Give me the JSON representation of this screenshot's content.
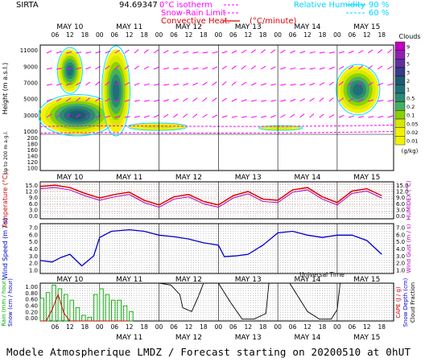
{
  "header": {
    "station": "SIRTA",
    "coords": "94.69347",
    "legend_isotherm": "0°C isotherm",
    "legend_snow": "Snow-Rain Limit",
    "legend_convective": "Convective Heat.",
    "legend_convective_unit": "(°C/minute)",
    "legend_rh": "Relative Humidity",
    "rh_90": "90 %",
    "rh_60": "60 %"
  },
  "footer": {
    "text": "Modele Atmospherique LMDZ / Forecast starting on 20200510 at 0hUT"
  },
  "colors": {
    "cloud_scale": [
      "#f2f200",
      "#d6e800",
      "#8ad000",
      "#44b060",
      "#2a8a70",
      "#1f6f78",
      "#1d5a70",
      "#3a3a8a",
      "#6030a0",
      "#9020b0",
      "#c000c0"
    ],
    "temperature": "#e00000",
    "humidex": "#b000b0",
    "wind_speed": "#0000cc",
    "rain": "#00aa00",
    "cape": "#cc0000",
    "snow_depth": "#0000cc",
    "cloud_fraction": "#000000",
    "wind_barb": "#ff00ff",
    "rh": "#00e0ff"
  },
  "chart_data": [
    {
      "type": "heatmap",
      "title": "",
      "ylabel": "Height (m a.s.l.)",
      "ylabel2": "Up to 200 m a.g.l.",
      "colorbar_title": "Clouds",
      "colorbar_unit": "(g/kg)",
      "colorbar_ticks": [
        "9",
        "7",
        "5",
        "3",
        "2",
        "1",
        "0.5",
        "0.2",
        "0.1",
        "0.05",
        "0.02",
        "0.01"
      ],
      "y_ticks": [
        "11000",
        "9000",
        "7000",
        "5000",
        "3000",
        "1000"
      ],
      "y_ticks_low": [
        "200",
        "180",
        "160",
        "140",
        "120",
        "100"
      ],
      "ylim": [
        1000,
        11500
      ],
      "x_days": [
        "MAY 10",
        "MAY 11",
        "MAY 12",
        "MAY 13",
        "MAY 14",
        "MAY 15"
      ],
      "x_hours": [
        "06",
        "12",
        "18",
        "00",
        "06",
        "12",
        "18",
        "00",
        "06",
        "12",
        "18",
        "00",
        "06",
        "12",
        "18",
        "00",
        "06",
        "12",
        "18",
        "00",
        "06",
        "12",
        "18"
      ],
      "cloud_blobs": [
        {
          "t0": 0.0,
          "t1": 1.25,
          "z0": 1000,
          "z1": 5500,
          "max_g_kg": 3
        },
        {
          "t0": 0.3,
          "t1": 0.7,
          "z0": 6000,
          "z1": 11000,
          "max_g_kg": 2
        },
        {
          "t0": 1.05,
          "t1": 1.5,
          "z0": 1200,
          "z1": 11000,
          "max_g_kg": 1
        },
        {
          "t0": 1.5,
          "t1": 2.45,
          "z0": 1500,
          "z1": 2300,
          "max_g_kg": 0.05
        },
        {
          "t0": 3.7,
          "t1": 4.4,
          "z0": 1500,
          "z1": 2000,
          "max_g_kg": 0.05
        },
        {
          "t0": 5.0,
          "t1": 5.7,
          "z0": 3500,
          "z1": 9000,
          "max_g_kg": 1
        }
      ]
    },
    {
      "type": "line",
      "ylabel": "Temperature (°C)",
      "ylabel2": "HUMIDEX (°C)",
      "y_ticks": [
        "15.0",
        "12.0",
        "9.0",
        "6.0",
        "3.0",
        "0.0"
      ],
      "ylim": [
        0,
        16
      ],
      "x": [
        0,
        0.25,
        0.5,
        0.75,
        1.0,
        1.25,
        1.5,
        1.75,
        2.0,
        2.25,
        2.5,
        2.75,
        3.0,
        3.25,
        3.5,
        3.75,
        4.0,
        4.25,
        4.5,
        4.75,
        5.0,
        5.25,
        5.5,
        5.75
      ],
      "series": [
        {
          "name": "Temperature",
          "values": [
            14.0,
            14.5,
            13.5,
            11.0,
            9.0,
            10.5,
            11.5,
            8.0,
            6.0,
            9.5,
            10.5,
            7.5,
            6.0,
            10.0,
            11.8,
            8.5,
            8.0,
            12.5,
            13.5,
            9.5,
            7.0,
            12.0,
            13.0,
            10.0
          ]
        },
        {
          "name": "Humidex",
          "values": [
            13.0,
            13.5,
            12.5,
            10.0,
            8.0,
            9.5,
            10.5,
            7.0,
            5.0,
            8.5,
            9.5,
            6.5,
            5.0,
            9.0,
            10.8,
            7.5,
            7.0,
            11.5,
            12.5,
            8.5,
            6.0,
            11.0,
            12.0,
            9.0
          ]
        }
      ]
    },
    {
      "type": "line",
      "ylabel": "Wind Speed (m / s)",
      "ylabel2": "Wind Gust (m / s)",
      "y_ticks": [
        "7.0",
        "6.0",
        "5.0",
        "4.0",
        "3.0",
        "2.0",
        "1.0"
      ],
      "ylim": [
        0.5,
        7
      ],
      "x": [
        0,
        0.2,
        0.35,
        0.5,
        0.7,
        0.9,
        1.0,
        1.2,
        1.5,
        1.75,
        2.0,
        2.25,
        2.5,
        2.75,
        3.0,
        3.1,
        3.3,
        3.5,
        3.75,
        4.0,
        4.25,
        4.5,
        4.75,
        5.0,
        5.25,
        5.5,
        5.75
      ],
      "series": [
        {
          "name": "Wind Speed",
          "values": [
            2.2,
            2.0,
            2.6,
            3.0,
            1.5,
            2.8,
            5.2,
            6.0,
            6.2,
            6.0,
            5.5,
            5.3,
            5.0,
            4.5,
            4.2,
            2.7,
            2.8,
            3.0,
            4.2,
            5.8,
            6.0,
            5.5,
            5.2,
            5.5,
            5.5,
            4.8,
            3.0
          ]
        }
      ]
    },
    {
      "type": "bar",
      "ylabel": "Rain (mm / hour)",
      "ylabel_b": "Snow (cm / hour)",
      "ylabel2": "CAPE (J / g)",
      "ylabel2_b": "Snow Depth (cm)",
      "ylabel2_c": "Cloud Fraction",
      "y_ticks": [
        "1.00",
        "0.80",
        "0.60",
        "0.40",
        "0.20",
        "0.00"
      ],
      "ylim": [
        0,
        1
      ],
      "x": [
        0.0,
        0.1,
        0.2,
        0.3,
        0.4,
        0.5,
        0.6,
        0.7,
        0.8,
        0.9,
        1.0,
        1.1,
        1.2,
        1.3,
        1.4,
        1.5
      ],
      "series": [
        {
          "name": "Rain",
          "values": [
            0.6,
            0.75,
            0.95,
            0.85,
            0.7,
            0.55,
            0.35,
            0.15,
            0.1,
            0.7,
            0.85,
            0.7,
            0.55,
            0.55,
            0.4,
            0.25
          ]
        },
        {
          "name": "CAPE",
          "values": [
            0,
            0,
            0.3,
            0.7,
            0.2,
            0,
            0,
            0,
            0,
            0,
            0,
            0,
            0,
            0,
            0,
            0
          ]
        }
      ],
      "cloud_fraction": {
        "x": [
          1.5,
          1.7,
          2.0,
          2.2,
          2.35,
          2.4,
          2.55,
          2.65,
          2.75,
          2.85,
          3.0,
          3.2,
          3.4,
          3.6,
          3.8,
          3.85,
          3.95,
          4.2,
          4.5,
          4.7,
          4.9,
          5.0,
          5.05,
          5.2,
          5.4,
          5.6,
          5.75
        ],
        "values": [
          1.0,
          1.0,
          1.0,
          0.95,
          0.7,
          0.35,
          0.25,
          0.6,
          1.0,
          1.0,
          1.0,
          0.5,
          0.05,
          0.05,
          0.2,
          1.0,
          1.0,
          1.0,
          0.25,
          0.05,
          0.05,
          0.3,
          1.0,
          1.0,
          1.0,
          1.0,
          1.0
        ]
      }
    }
  ],
  "xlabel": "Universal Time"
}
